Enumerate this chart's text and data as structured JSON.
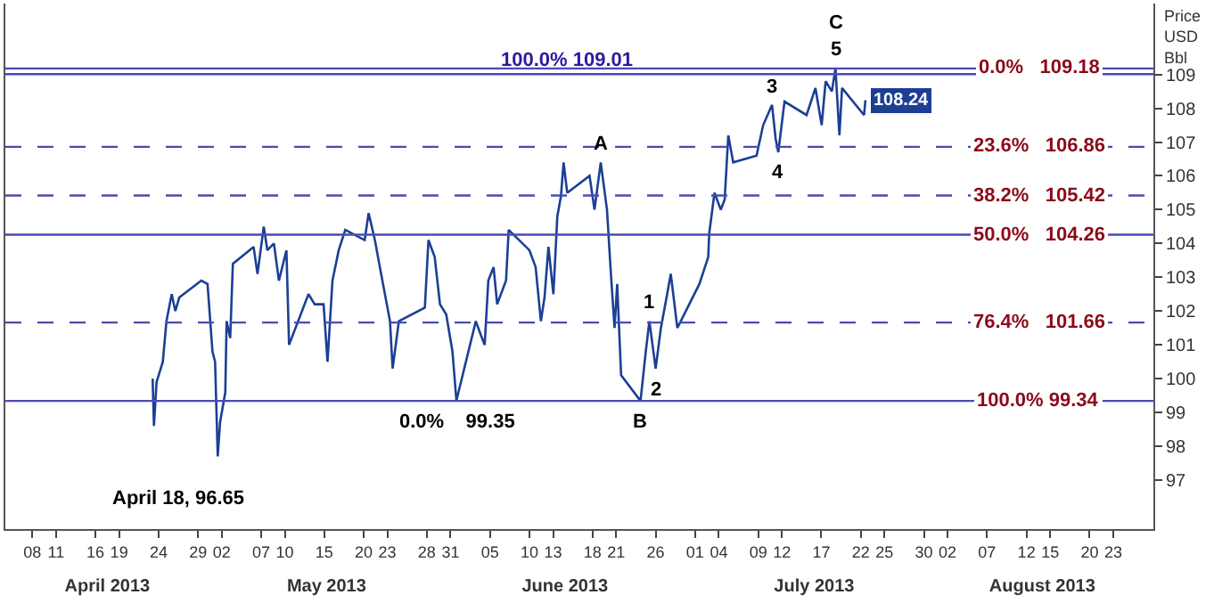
{
  "chart_data": {
    "type": "line",
    "ylabel": "Price\nUSD\nBbl",
    "x": [
      "2013-04-23T06:00",
      "2013-04-23T10:00",
      "2013-04-23T18:00",
      "2013-04-24T13:00",
      "2013-04-25T00:00",
      "2013-04-25T16:00",
      "2013-04-26T03:00",
      "2013-04-26T15:00",
      "2013-04-29T10:00",
      "2013-04-30T05:00",
      "2013-04-30T20:00",
      "2013-05-01T04:00",
      "2013-05-01T12:00",
      "2013-05-01T19:00",
      "2013-05-02T11:00",
      "2013-05-02T15:00",
      "2013-05-03T02:00",
      "2013-05-03T10:00",
      "2013-05-06T01:00",
      "2013-05-06T13:00",
      "2013-05-07T08:00",
      "2013-05-07T19:00",
      "2013-05-08T15:00",
      "2013-05-09T06:00",
      "2013-05-10T05:00",
      "2013-05-10T13:00",
      "2013-05-13T00:00",
      "2013-05-13T19:00",
      "2013-05-14T22:00",
      "2013-05-15T10:00",
      "2013-05-16T01:00",
      "2013-05-16T20:00",
      "2013-05-17T16:00",
      "2013-05-20T03:00",
      "2013-05-20T15:00",
      "2013-05-21T10:00",
      "2013-05-22T05:00",
      "2013-05-23T08:00",
      "2013-05-23T16:00",
      "2013-05-24T11:00",
      "2013-05-27T18:00",
      "2013-05-28T05:00",
      "2013-05-29T00:00",
      "2013-05-29T16:00",
      "2013-05-30T11:00",
      "2013-05-31T06:00",
      "2013-05-31T18:00",
      "2013-06-03T05:00",
      "2013-06-03T20:00",
      "2013-06-04T08:00",
      "2013-06-04T19:00",
      "2013-06-05T11:00",
      "2013-06-05T22:00",
      "2013-06-07T01:00",
      "2013-06-07T09:00",
      "2013-06-10T00:00",
      "2013-06-10T19:00",
      "2013-06-11T11:00",
      "2013-06-11T22:00",
      "2013-06-12T10:00",
      "2013-06-13T01:00",
      "2013-06-13T13:00",
      "2013-06-14T00:00",
      "2013-06-14T08:00",
      "2013-06-14T19:00",
      "2013-06-17T15:00",
      "2013-06-18T06:00",
      "2013-06-19T01:00",
      "2013-06-19T20:00",
      "2013-06-20T08:00",
      "2013-06-20T19:00",
      "2013-06-21T03:00",
      "2013-06-21T15:00",
      "2013-06-24T02:00",
      "2013-06-24T18:00",
      "2013-06-25T05:00",
      "2013-06-26T00:00",
      "2013-06-26T16:00",
      "2013-06-27T11:00",
      "2013-06-27T22:00",
      "2013-06-28T18:00",
      "2013-07-01T13:00",
      "2013-07-02T16:00",
      "2013-07-02T19:00",
      "2013-07-03T11:00",
      "2013-07-04T06:00",
      "2013-07-04T18:00",
      "2013-07-05T05:00",
      "2013-07-05T20:00",
      "2013-07-08T19:00",
      "2013-07-09T15:00",
      "2013-07-10T18:00",
      "2013-07-11T05:00",
      "2013-07-11T13:00",
      "2013-07-12T08:00",
      "2013-07-15T03:00",
      "2013-07-16T06:00",
      "2013-07-17T01:00",
      "2013-07-17T13:00",
      "2013-07-18T08:00",
      "2013-07-18T19:00",
      "2013-07-19T07:00",
      "2013-07-19T15:00",
      "2013-07-22T10:00",
      "2013-07-22T14:00"
    ],
    "series": [
      {
        "color": "#1c3f94",
        "value_labels": [
          null,
          null,
          null,
          null,
          null,
          null,
          null,
          null,
          null,
          null,
          null,
          null,
          null,
          null,
          null,
          null,
          null,
          null,
          null,
          null,
          null,
          null,
          null,
          null,
          null,
          null,
          null,
          null,
          null,
          null,
          null,
          null,
          null,
          null,
          null,
          null,
          null,
          null,
          null,
          null,
          null,
          null,
          null,
          null,
          null,
          null,
          null,
          null,
          null,
          null,
          null,
          null,
          null,
          null,
          null,
          null,
          null,
          null,
          null,
          null,
          null,
          null,
          null,
          null,
          null,
          null,
          null,
          null,
          null,
          null,
          null,
          null,
          null,
          null,
          null,
          null,
          null,
          null,
          null,
          null,
          null,
          null,
          null,
          null,
          null,
          null,
          null,
          null,
          null,
          null,
          null,
          null,
          null,
          null,
          null,
          null,
          null,
          null,
          null,
          null,
          null,
          null,
          null,
          null,
          "108.24"
        ],
        "values": [
          100.0,
          98.6,
          99.9,
          100.5,
          101.7,
          102.5,
          102.0,
          102.4,
          102.9,
          102.8,
          100.8,
          100.5,
          97.7,
          98.7,
          99.6,
          101.7,
          101.2,
          103.4,
          103.9,
          103.1,
          104.5,
          103.8,
          104.0,
          102.9,
          103.8,
          101.0,
          102.5,
          102.2,
          102.2,
          100.5,
          102.9,
          103.8,
          104.4,
          104.1,
          104.9,
          104.1,
          103.1,
          101.7,
          100.3,
          101.7,
          102.1,
          104.1,
          103.6,
          102.2,
          101.9,
          100.8,
          99.35,
          101.7,
          101.3,
          101.0,
          102.9,
          103.3,
          102.2,
          102.9,
          104.4,
          103.8,
          103.3,
          101.7,
          102.4,
          103.9,
          102.5,
          104.8,
          105.4,
          106.4,
          105.5,
          106.0,
          105.0,
          106.4,
          105.0,
          103.1,
          101.5,
          102.8,
          100.1,
          99.34,
          100.8,
          101.7,
          100.3,
          101.5,
          102.5,
          103.1,
          101.5,
          102.8,
          103.6,
          104.3,
          105.5,
          105.0,
          105.3,
          107.2,
          106.4,
          106.6,
          107.5,
          108.1,
          107.1,
          106.7,
          108.2,
          107.8,
          108.6,
          107.5,
          108.8,
          108.5,
          109.18,
          107.2,
          108.6,
          107.8,
          108.24
        ]
      }
    ],
    "xlim": [
      "2013-04-04T14:00",
      "2013-08-28T02:00"
    ],
    "xticks": [
      {
        "value": "2013-04-08",
        "label": "08"
      },
      {
        "value": "2013-04-11",
        "label": "11"
      },
      {
        "value": "2013-04-16",
        "label": "16"
      },
      {
        "value": "2013-04-19",
        "label": "19"
      },
      {
        "value": "2013-04-24",
        "label": "24"
      },
      {
        "value": "2013-04-29",
        "label": "29"
      },
      {
        "value": "2013-05-02",
        "label": "02"
      },
      {
        "value": "2013-05-07",
        "label": "07"
      },
      {
        "value": "2013-05-10",
        "label": "10"
      },
      {
        "value": "2013-05-15",
        "label": "15"
      },
      {
        "value": "2013-05-20",
        "label": "20"
      },
      {
        "value": "2013-05-23",
        "label": "23"
      },
      {
        "value": "2013-05-28",
        "label": "28"
      },
      {
        "value": "2013-05-31",
        "label": "31"
      },
      {
        "value": "2013-06-05",
        "label": "05"
      },
      {
        "value": "2013-06-10",
        "label": "10"
      },
      {
        "value": "2013-06-13",
        "label": "13"
      },
      {
        "value": "2013-06-18",
        "label": "18"
      },
      {
        "value": "2013-06-21",
        "label": "21"
      },
      {
        "value": "2013-06-26",
        "label": "26"
      },
      {
        "value": "2013-07-01",
        "label": "01"
      },
      {
        "value": "2013-07-04",
        "label": "04"
      },
      {
        "value": "2013-07-09",
        "label": "09"
      },
      {
        "value": "2013-07-12",
        "label": "12"
      },
      {
        "value": "2013-07-17",
        "label": "17"
      },
      {
        "value": "2013-07-22",
        "label": "22"
      },
      {
        "value": "2013-07-25",
        "label": "25"
      },
      {
        "value": "2013-07-30",
        "label": "30"
      },
      {
        "value": "2013-08-02",
        "label": "02"
      },
      {
        "value": "2013-08-07",
        "label": "07"
      },
      {
        "value": "2013-08-12",
        "label": "12"
      },
      {
        "value": "2013-08-15",
        "label": "15"
      },
      {
        "value": "2013-08-20",
        "label": "20"
      },
      {
        "value": "2013-08-23",
        "label": "23"
      }
    ],
    "x2lim": [
      "2013-04-04T14:00",
      "2013-08-28T02:00"
    ],
    "x2ticks": [
      {
        "value": "2013-04-17T12:00",
        "label": "April 2013"
      },
      {
        "value": "2013-05-15T07:00",
        "label": "May 2013"
      },
      {
        "value": "2013-06-14T12:00",
        "label": "June 2013"
      },
      {
        "value": "2013-07-16T02:00",
        "label": "July 2013"
      },
      {
        "value": "2013-08-14",
        "label": "August 2013"
      }
    ],
    "ylim": [
      95.55,
      111.1
    ],
    "yticks": [
      97,
      98,
      99,
      100,
      101,
      102,
      103,
      104,
      105,
      106,
      107,
      108,
      109
    ],
    "ref_lines": [
      {
        "axis": "y",
        "value": 109.18,
        "label": "0.0%   109.18",
        "color": "#4a4ab8",
        "line_style": "solid"
      },
      {
        "axis": "y",
        "value": 109.01,
        "label": "100.0% 109.01",
        "color": "#4a4ab8",
        "line_style": "solid"
      },
      {
        "axis": "y",
        "value": 106.86,
        "label": "23.6%   106.86",
        "color": "#4a4ab8",
        "line_style": "dashed"
      },
      {
        "axis": "y",
        "value": 105.42,
        "label": "38.2%   105.42",
        "color": "#4a4ab8",
        "line_style": "dashed"
      },
      {
        "axis": "y",
        "value": 104.26,
        "label": "50.0%   104.26",
        "color": "#4a4ab8",
        "line_style": "solid"
      },
      {
        "axis": "y",
        "value": 101.66,
        "label": "76.4%   101.66",
        "color": "#4a4ab8",
        "line_style": "dashed"
      },
      {
        "axis": "y",
        "value": 99.34,
        "label": "100.0% 99.34",
        "color": "#4a4ab8",
        "line_style": "solid"
      }
    ],
    "annotations": [
      {
        "text": "A",
        "x": "2013-06-19T01:00",
        "y": 106.4
      },
      {
        "text": "B",
        "x": "2013-06-24T02:00",
        "y": 99.34
      },
      {
        "text": "1",
        "x": "2013-06-25T05:00",
        "y": 101.7
      },
      {
        "text": "2",
        "x": "2013-06-26T00:00",
        "y": 100.3
      },
      {
        "text": "3",
        "x": "2013-07-10T18:00",
        "y": 108.1
      },
      {
        "text": "4",
        "x": "2013-07-11T13:00",
        "y": 106.7
      },
      {
        "text": "5",
        "x": "2013-07-18T19:00",
        "y": 109.18
      },
      {
        "text": "C",
        "x": "2013-07-18T19:00",
        "y": 109.18
      },
      {
        "text": "0.0%    99.35",
        "x": "2013-05-31T18:00",
        "y": 99.35
      },
      "April 18, 96.65"
    ],
    "marker": "none",
    "line_style": "solid"
  }
}
